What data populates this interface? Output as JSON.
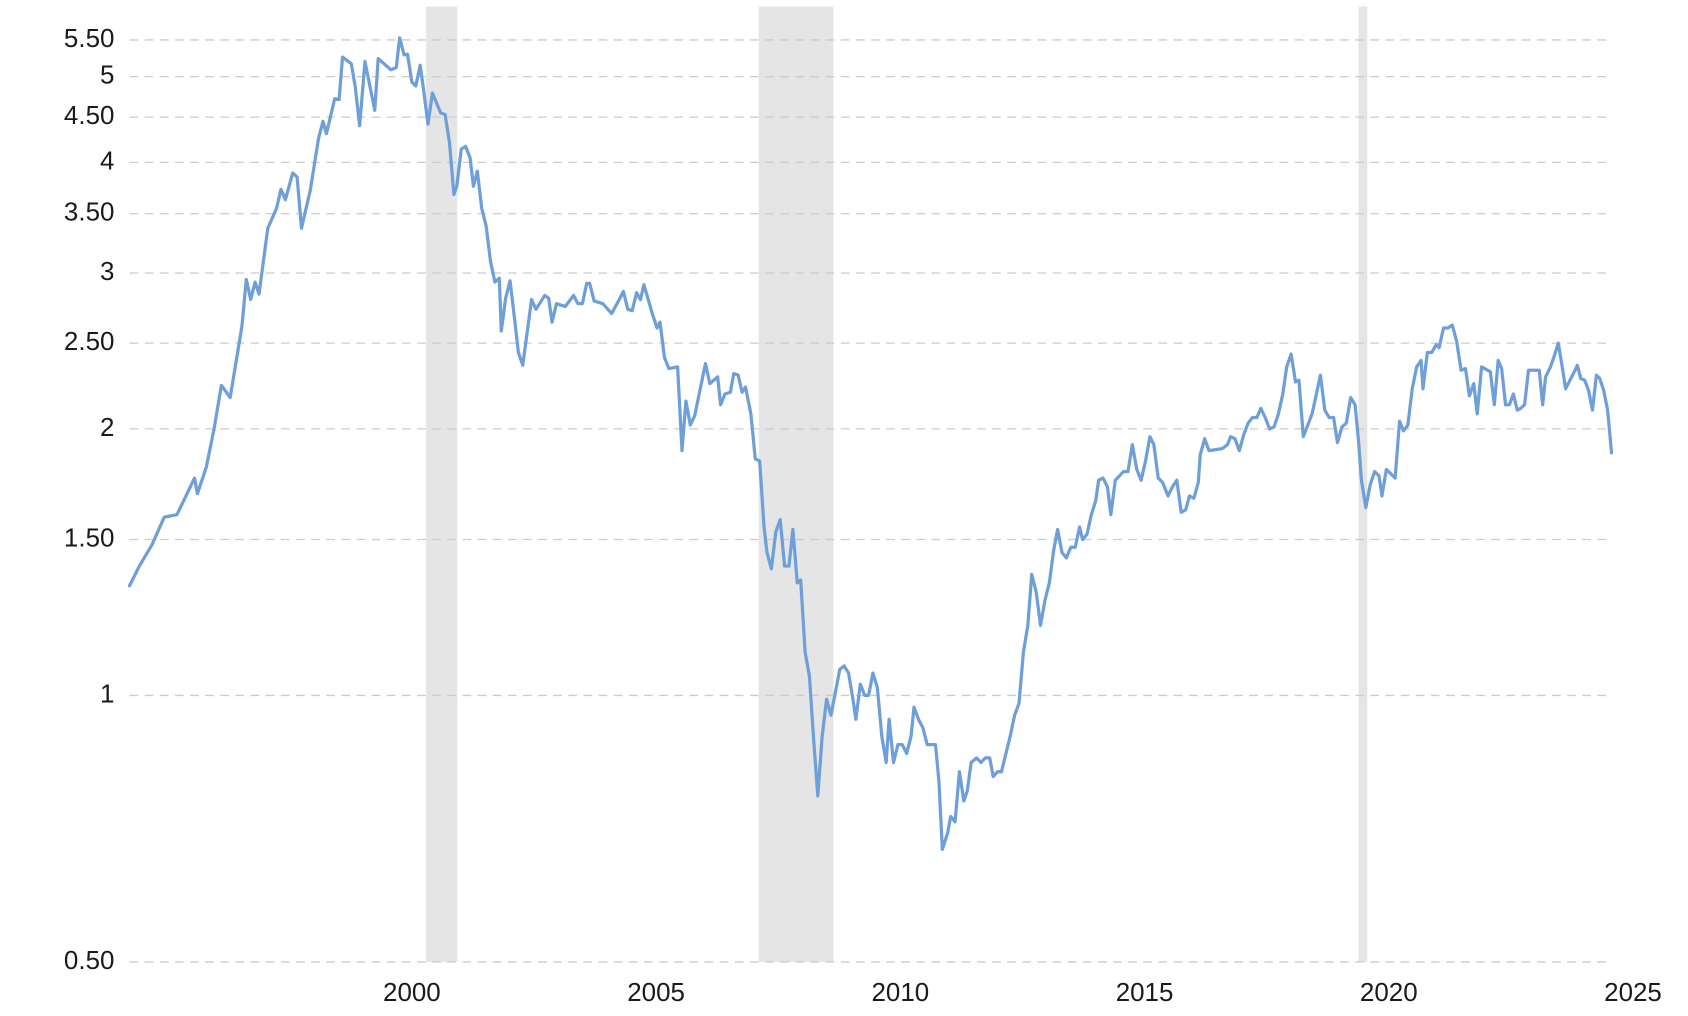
{
  "chart_data": {
    "type": "line",
    "log_y": true,
    "grid": true,
    "color": "#6f9fd8",
    "recession_color": "#e5e5e5",
    "recessions": [
      [
        2000.29,
        2000.93
      ],
      [
        2007.1,
        2008.63
      ],
      [
        2019.38,
        2019.56
      ]
    ],
    "xlim": [
      1994.22,
      2025
    ],
    "xticks": [
      2000,
      2005,
      2010,
      2015,
      2020,
      2025
    ],
    "ylim": [
      0.5,
      6
    ],
    "yticks": [
      {
        "value": 0.5,
        "label": "0.50"
      },
      1,
      {
        "value": 1.5,
        "label": "1.50"
      },
      2,
      {
        "value": 2.5,
        "label": "2.50"
      },
      3,
      {
        "value": 3.5,
        "label": "3.50"
      },
      4,
      {
        "value": 4.5,
        "label": "4.50"
      },
      5,
      {
        "value": 5.5,
        "label": "5.50"
      }
    ],
    "x": [
      1994.22,
      1994.42,
      1994.68,
      1994.93,
      1995.19,
      1995.55,
      1995.61,
      1995.79,
      1995.95,
      1996.1,
      1996.28,
      1996.52,
      1996.61,
      1996.7,
      1996.79,
      1996.87,
      1997.05,
      1997.23,
      1997.32,
      1997.41,
      1997.56,
      1997.65,
      1997.74,
      1997.92,
      1998.09,
      1998.18,
      1998.25,
      1998.42,
      1998.51,
      1998.58,
      1998.76,
      1998.84,
      1998.93,
      1999.04,
      1999.13,
      1999.24,
      1999.31,
      1999.57,
      1999.68,
      1999.75,
      1999.84,
      1999.91,
      2000.0,
      2000.08,
      2000.17,
      2000.24,
      2000.33,
      2000.42,
      2000.59,
      2000.68,
      2000.77,
      2000.86,
      2000.92,
      2001.01,
      2001.1,
      2001.19,
      2001.26,
      2001.34,
      2001.43,
      2001.52,
      2001.61,
      2001.7,
      2001.79,
      2001.83,
      2001.92,
      2002.01,
      2002.1,
      2002.18,
      2002.27,
      2002.45,
      2002.54,
      2002.72,
      2002.8,
      2002.87,
      2002.96,
      2003.14,
      2003.31,
      2003.4,
      2003.49,
      2003.58,
      2003.64,
      2003.73,
      2003.91,
      2004.09,
      2004.26,
      2004.33,
      2004.42,
      2004.51,
      2004.6,
      2004.68,
      2004.75,
      2004.93,
      2005.02,
      2005.08,
      2005.17,
      2005.26,
      2005.44,
      2005.53,
      2005.61,
      2005.7,
      2005.79,
      2006.01,
      2006.1,
      2006.26,
      2006.32,
      2006.41,
      2006.52,
      2006.59,
      2006.68,
      2006.76,
      2006.83,
      2006.94,
      2007.03,
      2007.12,
      2007.21,
      2007.27,
      2007.36,
      2007.45,
      2007.54,
      2007.63,
      2007.72,
      2007.8,
      2007.89,
      2007.96,
      2008.05,
      2008.14,
      2008.22,
      2008.31,
      2008.4,
      2008.49,
      2008.58,
      2008.76,
      2008.85,
      2008.94,
      2009.03,
      2009.09,
      2009.18,
      2009.27,
      2009.35,
      2009.44,
      2009.53,
      2009.62,
      2009.71,
      2009.77,
      2009.86,
      2009.95,
      2010.04,
      2010.13,
      2010.22,
      2010.28,
      2010.37,
      2010.46,
      2010.55,
      2010.72,
      2010.79,
      2010.86,
      2010.97,
      2011.03,
      2011.12,
      2011.21,
      2011.3,
      2011.37,
      2011.45,
      2011.56,
      2011.65,
      2011.74,
      2011.83,
      2011.9,
      2011.99,
      2012.07,
      2012.25,
      2012.34,
      2012.43,
      2012.52,
      2012.61,
      2012.69,
      2012.78,
      2012.87,
      2012.96,
      2013.05,
      2013.14,
      2013.22,
      2013.31,
      2013.4,
      2013.49,
      2013.58,
      2013.67,
      2013.73,
      2013.82,
      2013.91,
      2014.0,
      2014.06,
      2014.15,
      2014.24,
      2014.31,
      2014.4,
      2014.57,
      2014.66,
      2014.75,
      2014.84,
      2014.93,
      2015.02,
      2015.11,
      2015.19,
      2015.28,
      2015.37,
      2015.48,
      2015.57,
      2015.66,
      2015.75,
      2015.84,
      2015.92,
      2016.01,
      2016.1,
      2016.14,
      2016.23,
      2016.32,
      2016.59,
      2016.7,
      2016.76,
      2016.85,
      2016.94,
      2017.03,
      2017.12,
      2017.21,
      2017.3,
      2017.38,
      2017.47,
      2017.56,
      2017.65,
      2017.74,
      2017.83,
      2017.91,
      2018.0,
      2018.09,
      2018.16,
      2018.25,
      2018.43,
      2018.51,
      2018.6,
      2018.69,
      2018.78,
      2018.87,
      2018.95,
      2019.04,
      2019.13,
      2019.22,
      2019.31,
      2019.38,
      2019.44,
      2019.53,
      2019.62,
      2019.71,
      2019.8,
      2019.86,
      2019.95,
      2020.13,
      2020.22,
      2020.3,
      2020.39,
      2020.48,
      2020.57,
      2020.66,
      2020.7,
      2020.79,
      2020.88,
      2020.97,
      2021.03,
      2021.12,
      2021.21,
      2021.3,
      2021.39,
      2021.48,
      2021.57,
      2021.65,
      2021.74,
      2021.81,
      2021.9,
      2022.08,
      2022.16,
      2022.24,
      2022.31,
      2022.39,
      2022.47,
      2022.55,
      2022.63,
      2022.7,
      2022.78,
      2022.86,
      2023.02,
      2023.08,
      2023.15,
      2023.21,
      2023.31,
      2023.39,
      2023.47,
      2023.54,
      2023.62,
      2023.78,
      2023.86,
      2023.93,
      2024.01,
      2024.09,
      2024.17,
      2024.25,
      2024.32,
      2024.4,
      2024.48,
      2024.56
    ],
    "values": [
      1.33,
      1.4,
      1.48,
      1.59,
      1.6,
      1.76,
      1.69,
      1.81,
      2.0,
      2.24,
      2.17,
      2.61,
      2.95,
      2.8,
      2.93,
      2.84,
      3.37,
      3.55,
      3.73,
      3.63,
      3.89,
      3.85,
      3.37,
      3.72,
      4.26,
      4.45,
      4.31,
      4.72,
      4.71,
      5.26,
      5.17,
      4.87,
      4.4,
      5.2,
      4.91,
      4.58,
      5.24,
      5.09,
      5.12,
      5.53,
      5.29,
      5.3,
      4.93,
      4.88,
      5.15,
      4.83,
      4.42,
      4.79,
      4.55,
      4.53,
      4.21,
      3.68,
      3.76,
      4.14,
      4.17,
      4.05,
      3.76,
      3.91,
      3.55,
      3.39,
      3.09,
      2.93,
      2.96,
      2.58,
      2.81,
      2.94,
      2.67,
      2.44,
      2.36,
      2.8,
      2.73,
      2.83,
      2.81,
      2.64,
      2.77,
      2.75,
      2.83,
      2.77,
      2.77,
      2.92,
      2.92,
      2.79,
      2.77,
      2.7,
      2.81,
      2.86,
      2.73,
      2.72,
      2.85,
      2.8,
      2.91,
      2.69,
      2.6,
      2.64,
      2.41,
      2.34,
      2.35,
      1.89,
      2.15,
      2.02,
      2.07,
      2.37,
      2.25,
      2.29,
      2.13,
      2.19,
      2.2,
      2.31,
      2.3,
      2.2,
      2.23,
      2.08,
      1.85,
      1.84,
      1.55,
      1.45,
      1.39,
      1.53,
      1.58,
      1.4,
      1.4,
      1.54,
      1.34,
      1.35,
      1.12,
      1.05,
      0.9,
      0.77,
      0.9,
      0.99,
      0.95,
      1.07,
      1.08,
      1.06,
      0.99,
      0.94,
      1.03,
      1.0,
      1.0,
      1.06,
      1.02,
      0.9,
      0.84,
      0.94,
      0.84,
      0.88,
      0.88,
      0.86,
      0.9,
      0.97,
      0.94,
      0.92,
      0.88,
      0.88,
      0.8,
      0.67,
      0.7,
      0.73,
      0.72,
      0.82,
      0.76,
      0.78,
      0.84,
      0.85,
      0.84,
      0.85,
      0.85,
      0.81,
      0.82,
      0.82,
      0.9,
      0.95,
      0.98,
      1.12,
      1.2,
      1.37,
      1.31,
      1.2,
      1.28,
      1.34,
      1.46,
      1.54,
      1.45,
      1.43,
      1.47,
      1.47,
      1.55,
      1.5,
      1.52,
      1.6,
      1.66,
      1.75,
      1.76,
      1.72,
      1.6,
      1.75,
      1.79,
      1.79,
      1.92,
      1.8,
      1.75,
      1.84,
      1.96,
      1.92,
      1.76,
      1.74,
      1.68,
      1.72,
      1.75,
      1.61,
      1.62,
      1.68,
      1.67,
      1.74,
      1.87,
      1.95,
      1.89,
      1.9,
      1.92,
      1.96,
      1.95,
      1.89,
      1.97,
      2.03,
      2.06,
      2.06,
      2.11,
      2.06,
      2.0,
      2.01,
      2.08,
      2.19,
      2.35,
      2.43,
      2.26,
      2.27,
      1.96,
      2.08,
      2.18,
      2.3,
      2.1,
      2.06,
      2.06,
      1.93,
      2.01,
      2.03,
      2.17,
      2.13,
      1.94,
      1.75,
      1.63,
      1.73,
      1.79,
      1.77,
      1.68,
      1.8,
      1.76,
      2.04,
      1.99,
      2.02,
      2.22,
      2.35,
      2.39,
      2.22,
      2.44,
      2.44,
      2.49,
      2.47,
      2.6,
      2.6,
      2.62,
      2.51,
      2.33,
      2.34,
      2.18,
      2.25,
      2.08,
      2.35,
      2.32,
      2.13,
      2.39,
      2.34,
      2.13,
      2.13,
      2.19,
      2.1,
      2.11,
      2.13,
      2.33,
      2.33,
      2.33,
      2.13,
      2.29,
      2.35,
      2.42,
      2.5,
      2.37,
      2.22,
      2.31,
      2.36,
      2.28,
      2.27,
      2.21,
      2.1,
      2.3,
      2.28,
      2.21,
      2.1,
      1.88
    ]
  }
}
